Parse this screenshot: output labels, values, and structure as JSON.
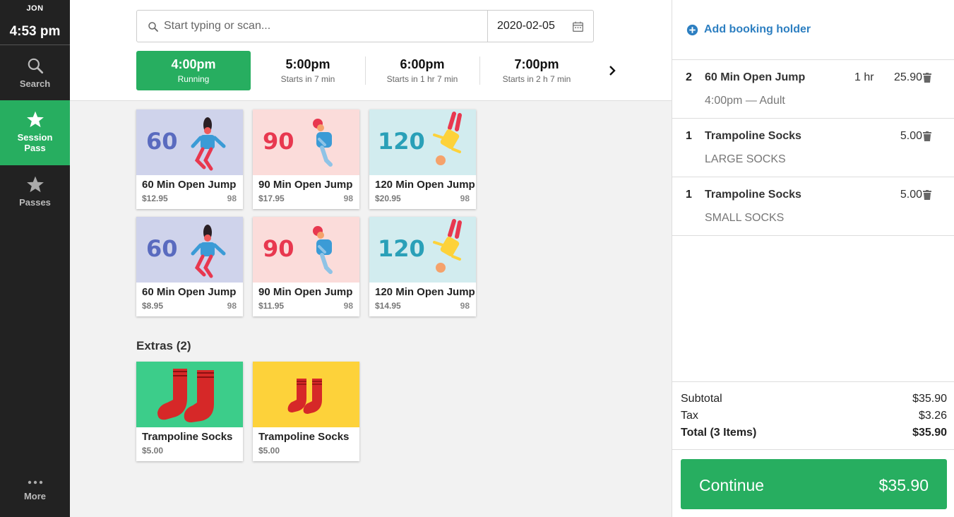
{
  "sidebar": {
    "user": "JON",
    "time": "4:53 pm",
    "items": [
      {
        "label": "Search",
        "icon": "search-icon"
      },
      {
        "label": "Session Pass",
        "icon": "star-icon",
        "active": true
      },
      {
        "label": "Passes",
        "icon": "star-icon"
      },
      {
        "label": "More",
        "icon": "more-dots-icon"
      }
    ]
  },
  "search": {
    "placeholder": "Start typing or scan...",
    "date": "2020-02-05"
  },
  "slots": [
    {
      "time": "4:00pm",
      "status": "Running",
      "active": true
    },
    {
      "time": "5:00pm",
      "status": "Starts in 7 min"
    },
    {
      "time": "6:00pm",
      "status": "Starts in 1 hr 7 min"
    },
    {
      "time": "7:00pm",
      "status": "Starts in 2 h 7 min"
    }
  ],
  "products": [
    {
      "art_label": "60",
      "name": "60 Min Open Jump",
      "price": "$12.95",
      "stock": "98"
    },
    {
      "art_label": "90",
      "name": "90 Min Open Jump",
      "price": "$17.95",
      "stock": "98"
    },
    {
      "art_label": "120",
      "name": "120 Min Open Jump",
      "price": "$20.95",
      "stock": "98"
    },
    {
      "art_label": "60",
      "name": "60 Min Open Jump",
      "price": "$8.95",
      "stock": "98"
    },
    {
      "art_label": "90",
      "name": "90 Min Open Jump",
      "price": "$11.95",
      "stock": "98"
    },
    {
      "art_label": "120",
      "name": "120 Min Open Jump",
      "price": "$14.95",
      "stock": "98"
    }
  ],
  "extras": {
    "title": "Extras (2)",
    "items": [
      {
        "name": "Trampoline Socks",
        "price": "$5.00"
      },
      {
        "name": "Trampoline Socks",
        "price": "$5.00"
      }
    ]
  },
  "cart": {
    "add_holder": "Add booking holder",
    "lines": [
      {
        "qty": "2",
        "name": "60 Min Open Jump",
        "duration": "1 hr",
        "amount": "25.90",
        "detail": "4:00pm — Adult"
      },
      {
        "qty": "1",
        "name": "Trampoline Socks",
        "duration": "",
        "amount": "5.00",
        "detail": "LARGE SOCKS"
      },
      {
        "qty": "1",
        "name": "Trampoline Socks",
        "duration": "",
        "amount": "5.00",
        "detail": "SMALL SOCKS"
      }
    ],
    "subtotal_label": "Subtotal",
    "subtotal": "$35.90",
    "tax_label": "Tax",
    "tax": "$3.26",
    "total_label": "Total (3 Items)",
    "total": "$35.90",
    "continue_label": "Continue",
    "continue_total": "$35.90"
  },
  "colors": {
    "accent_green": "#27ae60",
    "link_blue": "#2d7fc1",
    "sidebar_bg": "#222222"
  }
}
